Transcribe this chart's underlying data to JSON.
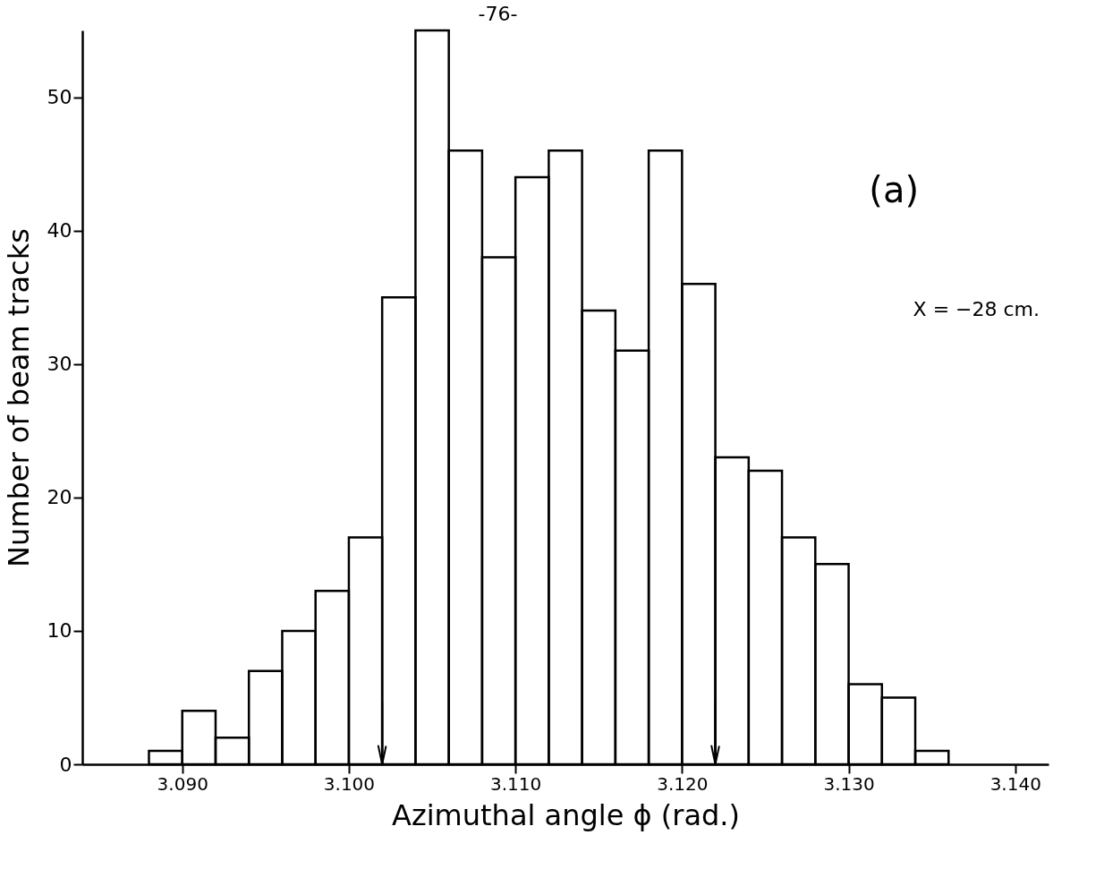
{
  "chart_data": {
    "type": "histogram",
    "xlabel": "Azimuthal angle ϕ (rad.)",
    "ylabel": "Number of beam tracks",
    "bins": [
      3.088,
      3.09,
      3.092,
      3.094,
      3.096,
      3.098,
      3.1,
      3.102,
      3.104,
      3.106,
      3.108,
      3.11,
      3.112,
      3.114,
      3.116,
      3.118,
      3.12,
      3.122,
      3.124,
      3.126,
      3.128,
      3.13,
      3.132,
      3.134,
      3.136
    ],
    "values": [
      1,
      4,
      2,
      7,
      10,
      13,
      17,
      35,
      55,
      46,
      38,
      44,
      46,
      34,
      31,
      46,
      36,
      23,
      22,
      17,
      15,
      6,
      5,
      1
    ],
    "color": "#000000",
    "xlim": [
      3.084,
      3.142
    ],
    "ylim": [
      0,
      55
    ],
    "xticks": [
      {
        "value": 3.09,
        "label": "3.090"
      },
      {
        "value": 3.1,
        "label": "3.100"
      },
      {
        "value": 3.11,
        "label": "3.110"
      },
      {
        "value": 3.12,
        "label": "3.120"
      },
      {
        "value": 3.13,
        "label": "3.130"
      },
      {
        "value": 3.14,
        "label": "3.140"
      }
    ],
    "yticks": [
      0,
      10,
      20,
      30,
      40,
      50
    ],
    "grid": false,
    "ref_lines": [
      {
        "axis": "x",
        "value": 3.102,
        "label": null
      },
      {
        "axis": "x",
        "value": 3.122,
        "label": null
      }
    ],
    "annotations": [
      "-76-",
      "(a)",
      "X = −28 cm."
    ]
  }
}
